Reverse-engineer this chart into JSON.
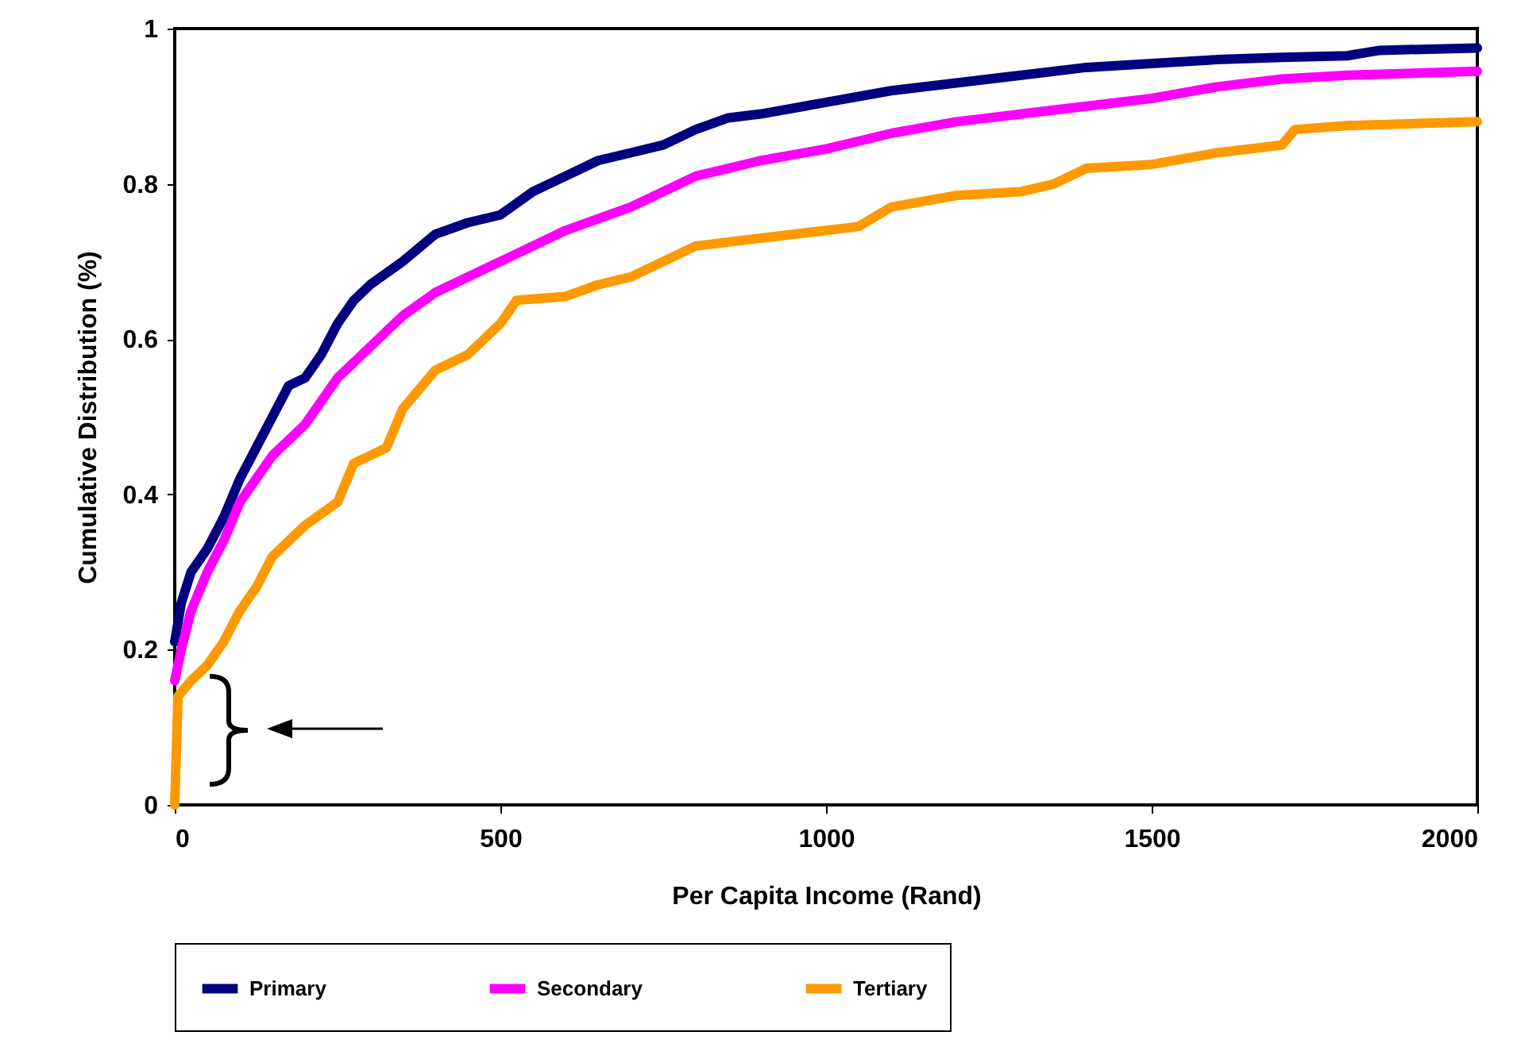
{
  "chart_data": {
    "type": "line",
    "xlabel": "Per Capita Income (Rand)",
    "ylabel": "Cumulative Distribution (%)",
    "xlim": [
      0,
      2000
    ],
    "xticks": [
      0,
      500,
      1000,
      1500,
      2000
    ],
    "ylim": [
      0,
      1
    ],
    "yticks": [
      0,
      0.2,
      0.4,
      0.6,
      0.8,
      1
    ],
    "grid": false,
    "legend": "bottom",
    "marker": "none",
    "line_style": "solid",
    "series": [
      {
        "name": "Primary",
        "color": "#000080",
        "x": [
          0,
          10,
          25,
          50,
          75,
          100,
          125,
          150,
          175,
          200,
          225,
          250,
          275,
          300,
          350,
          400,
          450,
          500,
          550,
          600,
          650,
          700,
          750,
          800,
          850,
          900,
          1000,
          1100,
          1200,
          1300,
          1400,
          1500,
          1600,
          1700,
          1800,
          1850,
          2000
        ],
        "values": [
          0.21,
          0.26,
          0.3,
          0.33,
          0.37,
          0.42,
          0.46,
          0.5,
          0.54,
          0.55,
          0.58,
          0.62,
          0.65,
          0.67,
          0.7,
          0.735,
          0.75,
          0.76,
          0.79,
          0.81,
          0.83,
          0.84,
          0.85,
          0.87,
          0.885,
          0.89,
          0.905,
          0.92,
          0.93,
          0.94,
          0.95,
          0.955,
          0.96,
          0.963,
          0.965,
          0.972,
          0.975
        ]
      },
      {
        "name": "Secondary",
        "color": "#ff00ff",
        "x": [
          0,
          10,
          25,
          50,
          75,
          100,
          125,
          150,
          200,
          250,
          300,
          350,
          400,
          450,
          500,
          550,
          600,
          700,
          800,
          900,
          1000,
          1100,
          1200,
          1300,
          1400,
          1500,
          1600,
          1700,
          1800,
          2000
        ],
        "values": [
          0.16,
          0.2,
          0.25,
          0.3,
          0.34,
          0.39,
          0.42,
          0.45,
          0.49,
          0.55,
          0.59,
          0.63,
          0.66,
          0.68,
          0.7,
          0.72,
          0.74,
          0.77,
          0.81,
          0.83,
          0.845,
          0.865,
          0.88,
          0.89,
          0.9,
          0.91,
          0.925,
          0.935,
          0.94,
          0.945
        ]
      },
      {
        "name": "Tertiary",
        "color": "#ff9900",
        "x": [
          0,
          5,
          25,
          50,
          75,
          100,
          125,
          150,
          200,
          250,
          275,
          325,
          350,
          400,
          450,
          500,
          525,
          600,
          650,
          700,
          800,
          900,
          1000,
          1050,
          1100,
          1200,
          1300,
          1350,
          1400,
          1500,
          1600,
          1700,
          1720,
          1800,
          2000
        ],
        "values": [
          0,
          0.14,
          0.16,
          0.18,
          0.21,
          0.25,
          0.28,
          0.32,
          0.36,
          0.39,
          0.44,
          0.46,
          0.51,
          0.56,
          0.58,
          0.62,
          0.65,
          0.655,
          0.67,
          0.68,
          0.72,
          0.73,
          0.74,
          0.745,
          0.77,
          0.785,
          0.79,
          0.8,
          0.82,
          0.825,
          0.84,
          0.85,
          0.87,
          0.875,
          0.88
        ]
      }
    ]
  }
}
